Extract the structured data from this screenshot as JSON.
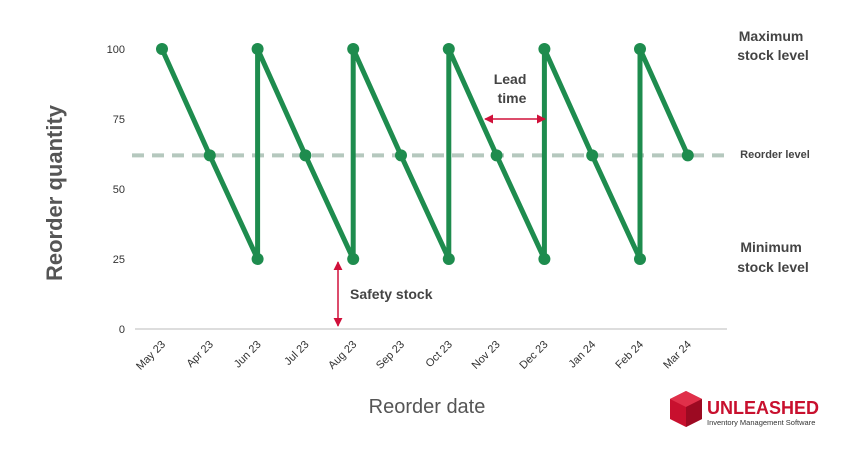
{
  "chart_data": {
    "type": "line",
    "ylabel": "Reorder quantity",
    "xlabel": "Reorder date",
    "ylim": [
      0,
      100
    ],
    "yticks": [
      0,
      25,
      50,
      75,
      100
    ],
    "categories": [
      "May 23",
      "Apr 23",
      "Jun 23",
      "Jul 23",
      "Aug 23",
      "Sep 23",
      "Oct 23",
      "Nov 23",
      "Dec 23",
      "Jan 24",
      "Feb 24",
      "Mar 24"
    ],
    "series": [
      {
        "values": [
          {
            "x": 0,
            "y": 100
          },
          {
            "x": 1,
            "y": 62
          },
          {
            "x": 2,
            "y": 25
          },
          {
            "x": 2,
            "y": 100
          },
          {
            "x": 3,
            "y": 62
          },
          {
            "x": 4,
            "y": 25
          },
          {
            "x": 4,
            "y": 100
          },
          {
            "x": 5,
            "y": 62
          },
          {
            "x": 6,
            "y": 25
          },
          {
            "x": 6,
            "y": 100
          },
          {
            "x": 7,
            "y": 62
          },
          {
            "x": 8,
            "y": 25
          },
          {
            "x": 8,
            "y": 100
          },
          {
            "x": 9,
            "y": 62
          },
          {
            "x": 10,
            "y": 25
          },
          {
            "x": 10,
            "y": 100
          },
          {
            "x": 11,
            "y": 62
          }
        ]
      }
    ],
    "reorder_level": 62,
    "annotations": {
      "max_level": [
        "Maximum",
        "stock level"
      ],
      "reorder_level": "Reorder level",
      "min_level": [
        "Minimum",
        "stock level"
      ],
      "lead_time": [
        "Lead",
        "time"
      ],
      "safety_stock": "Safety stock"
    },
    "grid": false,
    "legend": "none",
    "colors": {
      "line": "#1e8c4e",
      "reorder_line": "#b5c8be",
      "arrow": "#d0103a",
      "axis": "#bbbbbb"
    }
  },
  "brand": {
    "name": "UNLEASHED",
    "tagline": "Inventory Management Software",
    "color": "#c8102e"
  }
}
